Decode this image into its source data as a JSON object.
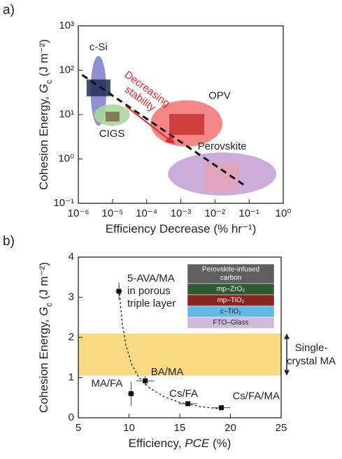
{
  "chart_data": [
    {
      "type": "region",
      "panel_label": "a)",
      "xlabel": [
        "Efficiency Decrease (% hr⁻¹)"
      ],
      "ylabel": [
        "Cohesion Energy, ",
        "G",
        "c",
        " (J m⁻²)"
      ],
      "xscale": "log",
      "yscale": "log",
      "xlim": [
        1e-06,
        1
      ],
      "ylim": [
        0.1,
        1000
      ],
      "xticks": [
        {
          "value": 1e-06,
          "label": "10⁻⁶"
        },
        {
          "value": 1e-05,
          "label": "10⁻⁵"
        },
        {
          "value": 0.0001,
          "label": "10⁻⁴"
        },
        {
          "value": 0.001,
          "label": "10⁻³"
        },
        {
          "value": 0.01,
          "label": "10⁻²"
        },
        {
          "value": 0.1,
          "label": "10⁻¹"
        },
        {
          "value": 1,
          "label": "10⁰"
        }
      ],
      "yticks": [
        {
          "value": 0.1,
          "label": "10⁻¹"
        },
        {
          "value": 1,
          "label": "10⁰"
        },
        {
          "value": 10,
          "label": "10¹"
        },
        {
          "value": 100,
          "label": "10²"
        },
        {
          "value": 1000,
          "label": "10³"
        }
      ],
      "regions": [
        {
          "name": "c-Si",
          "color": "#8184cc",
          "xlim": [
            2.3e-06,
            6.6e-06
          ],
          "ylim": [
            5.6,
            210
          ]
        },
        {
          "name": "CIGS",
          "color": "#a9d69a",
          "xlim": [
            2.9e-06,
            3.2e-05
          ],
          "ylim": [
            5.6,
            17
          ]
        },
        {
          "name": "OPV",
          "color": "#f47a7a",
          "xlim": [
            0.00013,
            0.0166
          ],
          "ylim": [
            1.9,
            21
          ]
        },
        {
          "name": "Perovskite",
          "color": "#c7a3d6",
          "xlim": [
            0.00042,
            0.63
          ],
          "ylim": [
            0.15,
            1.4
          ]
        }
      ],
      "trend": {
        "x": [
          1.3e-06,
          0.076
        ],
        "y": [
          78,
          0.25
        ]
      },
      "annotation": {
        "text": [
          "Decreasing",
          "stability"
        ],
        "color": "#e8262a"
      }
    },
    {
      "type": "scatter",
      "panel_label": "b)",
      "xlabel": [
        "Efficiency, ",
        "PCE",
        " (%)"
      ],
      "ylabel": [
        "Cohesion Energy, ",
        "G",
        "c",
        " (J m⁻²)"
      ],
      "xlim": [
        5,
        25
      ],
      "ylim": [
        0,
        4
      ],
      "xticks": [
        5,
        10,
        15,
        20,
        25
      ],
      "yticks": [
        0,
        1,
        2,
        3,
        4
      ],
      "x": [
        9.0,
        11.6,
        10.2,
        15.8,
        19.1
      ],
      "values": [
        3.15,
        0.92,
        0.6,
        0.35,
        0.25
      ],
      "xerr": [
        0.35,
        0.9,
        0.3,
        0.9,
        0.9
      ],
      "yerr": [
        0.22,
        0.12,
        0.3,
        0.05,
        0.06
      ],
      "labels": [
        [
          "5-AVA/MA",
          "in porous",
          "triple layer"
        ],
        [
          "BA/MA"
        ],
        [
          "MA/FA"
        ],
        [
          "Cs/FA"
        ],
        [
          "Cs/FA/MA"
        ]
      ],
      "fit": {
        "x": [
          9.0,
          9.3,
          9.7,
          10.3,
          11,
          12,
          13.5,
          15,
          17,
          19
        ],
        "y": [
          3.3,
          2.4,
          1.8,
          1.3,
          1.0,
          0.75,
          0.52,
          0.38,
          0.28,
          0.22
        ]
      },
      "band": {
        "ylim": [
          1.05,
          2.1
        ],
        "color": "#fbd882",
        "label": [
          "Single-",
          "crystal MA"
        ]
      },
      "inset_layers": [
        {
          "name": [
            "Perovskite-infused",
            "carbon"
          ],
          "color": "#5f5f5f"
        },
        {
          "name": [
            "mp–ZrO₂"
          ],
          "color": "#2f5a30"
        },
        {
          "name": [
            "mp–TiO₂"
          ],
          "color": "#8a2222"
        },
        {
          "name": [
            "c–TiO₂"
          ],
          "color": "#62b9e2"
        },
        {
          "name": [
            "FTO–Glass"
          ],
          "color": "#cdbbdb"
        }
      ]
    }
  ]
}
